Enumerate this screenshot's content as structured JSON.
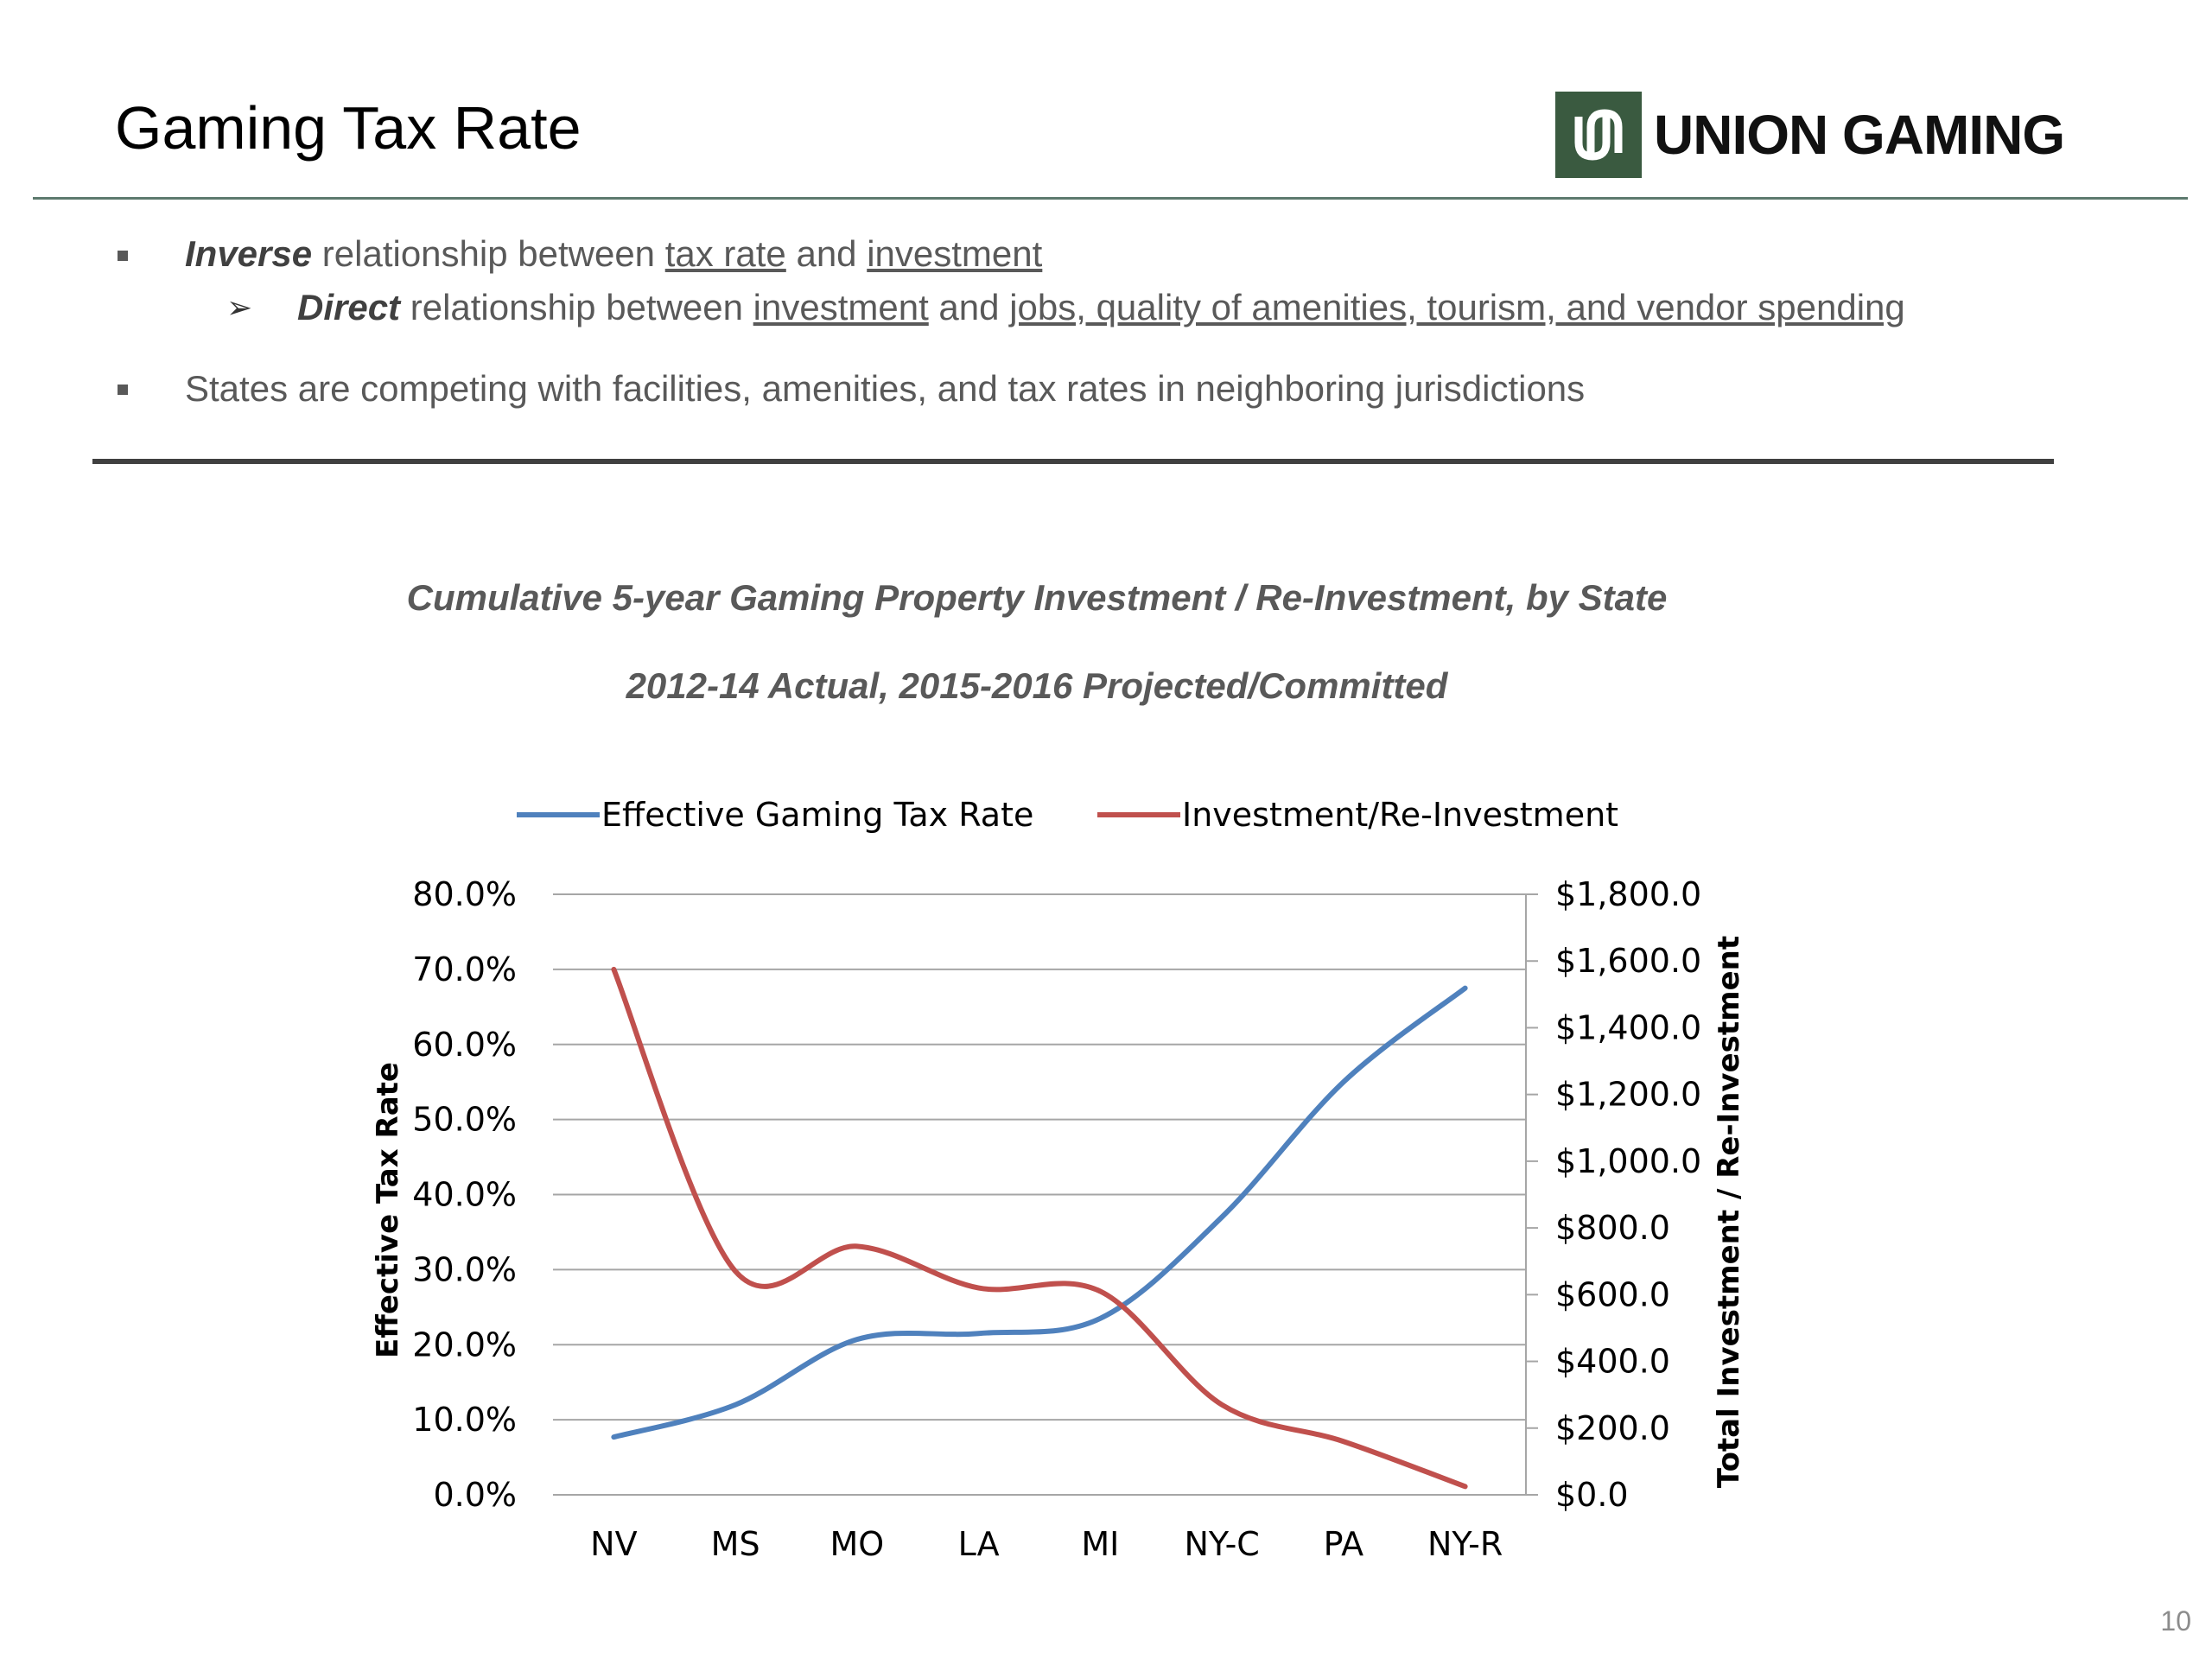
{
  "header": {
    "title": "Gaming Tax Rate",
    "logo_text": "UNION GAMING"
  },
  "bullets": {
    "b1": {
      "bold": "Inverse",
      "t1": " relationship between ",
      "u1": "tax rate",
      "t2": " and ",
      "u2": "investment"
    },
    "b1_sub": {
      "bold": "Direct",
      "t1": " relationship between ",
      "u1": "investment",
      "t2": " and ",
      "u2": "jobs, quality of amenities, tourism, and vendor spending"
    },
    "b2": {
      "text": "States are competing with facilities, amenities, and tax rates in neighboring jurisdictions"
    }
  },
  "chart_data": {
    "type": "line",
    "title": "Cumulative 5-year Gaming Property Investment / Re-Investment, by State",
    "subtitle": "2012-14 Actual, 2015-2016 Projected/Committed",
    "categories": [
      "NV",
      "MS",
      "MO",
      "LA",
      "MI",
      "NY-C",
      "PA",
      "NY-R"
    ],
    "series": [
      {
        "name": "Effective Gaming Tax Rate",
        "axis": "left",
        "color": "#4f81bd",
        "values": [
          7.7,
          12.0,
          20.7,
          21.5,
          23.5,
          37.0,
          55.0,
          67.5
        ]
      },
      {
        "name": "Investment/Re-Investment",
        "axis": "right",
        "color": "#c0504d",
        "values": [
          1575,
          670,
          745,
          620,
          610,
          270,
          160,
          25
        ]
      }
    ],
    "ylabel": "Effective Tax Rate",
    "y2label": "Total Investment / Re-Investment",
    "ylim": [
      0,
      80
    ],
    "y2lim": [
      0,
      1800
    ],
    "yticks": [
      "0.0%",
      "10.0%",
      "20.0%",
      "30.0%",
      "40.0%",
      "50.0%",
      "60.0%",
      "70.0%",
      "80.0%"
    ],
    "y2ticks": [
      "$0.0",
      "$200.0",
      "$400.0",
      "$600.0",
      "$800.0",
      "$1,000.0",
      "$1,200.0",
      "$1,400.0",
      "$1,600.0",
      "$1,800.0"
    ],
    "legend": "top",
    "grid": true
  },
  "footer": {
    "page_number": "10"
  }
}
